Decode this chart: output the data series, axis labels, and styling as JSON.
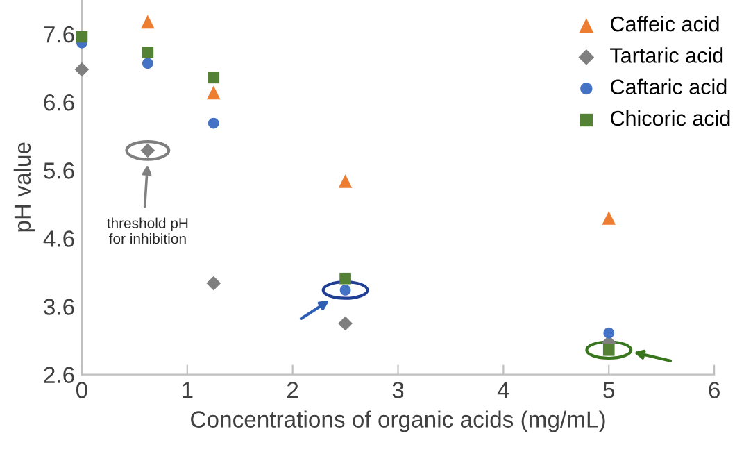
{
  "chart_data": {
    "type": "scatter",
    "xlabel": "Concentrations of organic acids (mg/mL)",
    "ylabel": "pH value",
    "x": [
      0,
      0.625,
      1.25,
      2.5,
      5
    ],
    "xlim": [
      0,
      6
    ],
    "xticks": [
      0,
      1,
      2,
      3,
      4,
      5,
      6
    ],
    "ylim": [
      2.6,
      8.1
    ],
    "yticks": [
      2.6,
      3.6,
      4.6,
      5.6,
      6.6,
      7.6
    ],
    "grid": false,
    "legend": "top right",
    "series": [
      {
        "name": "Caffeic acid",
        "color": "#ed7d31",
        "marker": "triangle",
        "values": [
          null,
          7.78,
          6.74,
          5.44,
          4.9
        ]
      },
      {
        "name": "Tartaric acid",
        "color": "#7f7f7f",
        "marker": "diamond",
        "values": [
          7.08,
          5.89,
          3.94,
          3.35,
          3.07
        ]
      },
      {
        "name": "Caftaric acid",
        "color": "#4472c4",
        "marker": "circle",
        "values": [
          7.47,
          7.17,
          6.29,
          3.84,
          3.21
        ]
      },
      {
        "name": "Chicoric acid",
        "color": "#548235",
        "marker": "square",
        "values": [
          7.56,
          7.33,
          6.96,
          4.01,
          2.96
        ]
      }
    ],
    "annotations": [
      "threshold pH\nfor inhibition"
    ]
  }
}
